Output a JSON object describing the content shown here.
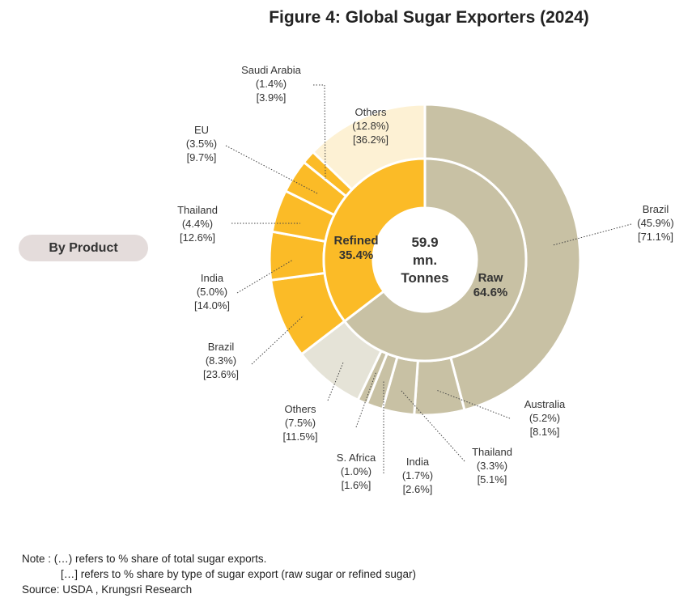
{
  "title": "Figure 4: Global Sugar Exporters (2024)",
  "side_label": "By Product",
  "center": [
    "59.9",
    "mn.",
    "Tonnes"
  ],
  "chart_data": {
    "type": "pie",
    "subtype": "nested-donut",
    "total": "59.9 mn. Tonnes",
    "colors": {
      "raw_outer": "#c8c1a4",
      "raw_inner": "#c8c1a4",
      "refined": "#fbbb27",
      "others_raw": "#e5e3d7",
      "others_refined": "#fdf1d4"
    },
    "inner_ring": [
      {
        "name": "Raw",
        "value": 64.6,
        "label": "Raw",
        "pct": "64.6%"
      },
      {
        "name": "Refined",
        "value": 35.4,
        "label": "Refined",
        "pct": "35.4%"
      }
    ],
    "outer_ring": [
      {
        "name": "Brazil",
        "type": "raw",
        "value": 45.9,
        "share_total": "(45.9%)",
        "share_type": "[71.1%]"
      },
      {
        "name": "Australia",
        "type": "raw",
        "value": 5.2,
        "share_total": "(5.2%)",
        "share_type": "[8.1%]"
      },
      {
        "name": "Thailand",
        "type": "raw",
        "value": 3.3,
        "share_total": "(3.3%)",
        "share_type": "[5.1%]"
      },
      {
        "name": "India",
        "type": "raw",
        "value": 1.7,
        "share_total": "(1.7%)",
        "share_type": "[2.6%]"
      },
      {
        "name": "S. Africa",
        "type": "raw",
        "value": 1.0,
        "share_total": "(1.0%)",
        "share_type": "[1.6%]"
      },
      {
        "name": "Others",
        "type": "raw",
        "value": 7.5,
        "share_total": "(7.5%)",
        "share_type": "[11.5%]"
      },
      {
        "name": "Brazil",
        "type": "refined",
        "value": 8.3,
        "share_total": "(8.3%)",
        "share_type": "[23.6%]"
      },
      {
        "name": "India",
        "type": "refined",
        "value": 5.0,
        "share_total": "(5.0%)",
        "share_type": "[14.0%]"
      },
      {
        "name": "Thailand",
        "type": "refined",
        "value": 4.4,
        "share_total": "(4.4%)",
        "share_type": "[12.6%]"
      },
      {
        "name": "EU",
        "type": "refined",
        "value": 3.5,
        "share_total": "(3.5%)",
        "share_type": "[9.7%]"
      },
      {
        "name": "Saudi Arabia",
        "type": "refined",
        "value": 1.4,
        "share_total": "(1.4%)",
        "share_type": "[3.9%]"
      },
      {
        "name": "Others",
        "type": "refined",
        "value": 12.8,
        "share_total": "(12.8%)",
        "share_type": "[36.2%]"
      }
    ]
  },
  "notes": [
    "Note : (…) refers to % share of total sugar exports.",
    "[…] refers to % share by type of sugar export (raw sugar or refined sugar)",
    "Source: USDA , Krungsri Research"
  ]
}
